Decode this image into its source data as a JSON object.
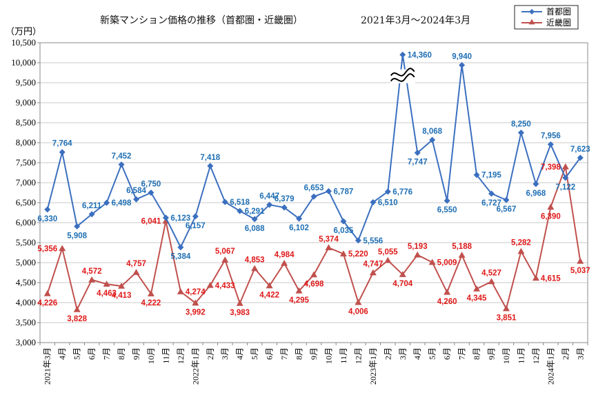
{
  "chart_data": {
    "type": "line",
    "title": "新築マンション価格の推移（首都圏・近畿圏）",
    "subtitle": "2021年3月～2024年3月",
    "ylabel": "（万円）",
    "ylim": [
      3000,
      10500
    ],
    "ytick_step": 500,
    "ytick_labels": [
      "3,000",
      "3,500",
      "4,000",
      "4,500",
      "5,000",
      "5,500",
      "6,000",
      "6,500",
      "7,000",
      "7,500",
      "8,000",
      "8,500",
      "9,000",
      "9,500",
      "10,000",
      "10,500"
    ],
    "categories": [
      "2021年3月",
      "4月",
      "5月",
      "6月",
      "7月",
      "8月",
      "9月",
      "10月",
      "11月",
      "12月",
      "2022年1月",
      "2月",
      "3月",
      "4月",
      "5月",
      "6月",
      "7月",
      "8月",
      "9月",
      "10月",
      "11月",
      "12月",
      "2023年1月",
      "2月",
      "3月",
      "4月",
      "5月",
      "6月",
      "7月",
      "8月",
      "9月",
      "10月",
      "11月",
      "12月",
      "2024年1月",
      "2月",
      "3月"
    ],
    "axis_break": {
      "category": "3月",
      "index": 24,
      "note": "≈"
    },
    "series": [
      {
        "name": "首都圏",
        "color": "#3b6fbf",
        "marker": "diamond",
        "values": [
          6330,
          7764,
          5908,
          6211,
          6498,
          7452,
          6584,
          6750,
          6123,
          5384,
          6157,
          7418,
          6518,
          6291,
          6088,
          6447,
          6379,
          6102,
          6653,
          6787,
          6035,
          5556,
          6510,
          6776,
          14360,
          7747,
          8068,
          6550,
          9940,
          7195,
          6727,
          6567,
          8250,
          6968,
          7956,
          7122,
          7623
        ],
        "plot_values": [
          6330,
          7764,
          5908,
          6211,
          6498,
          7452,
          6584,
          6750,
          6123,
          5384,
          6157,
          7418,
          6518,
          6291,
          6088,
          6447,
          6379,
          6102,
          6653,
          6787,
          6035,
          5556,
          6510,
          6776,
          10200,
          7747,
          8068,
          6550,
          9940,
          7195,
          6727,
          6567,
          8250,
          6968,
          7956,
          7122,
          7623
        ],
        "labels": [
          "6,330",
          "7,764",
          "5,908",
          "6,211",
          "6,498",
          "7,452",
          "6,584",
          "6,750",
          "6,123",
          "5,384",
          "6,157",
          "7,418",
          "6,518",
          "6,291",
          "6,088",
          "6,447",
          "6,379",
          "6,102",
          "6,653",
          "6,787",
          "6,035",
          "5,556",
          "6,510",
          "6,776",
          "14,360",
          "7,747",
          "8,068",
          "6,550",
          "9,940",
          "7,195",
          "6,727",
          "6,567",
          "8,250",
          "6,968",
          "7,956",
          "7,122",
          "7,623"
        ],
        "label_pos": [
          "below",
          "above",
          "below",
          "above",
          "right",
          "above",
          "above",
          "above",
          "right",
          "below",
          "below",
          "above",
          "right",
          "right",
          "below",
          "above",
          "above",
          "below",
          "above",
          "right",
          "below",
          "right",
          "right",
          "right",
          "right",
          "below",
          "above",
          "below",
          "above",
          "right",
          "below",
          "below",
          "above",
          "below",
          "above",
          "below",
          "above"
        ]
      },
      {
        "name": "近畿圏",
        "color": "#c0504d",
        "marker": "triangle",
        "values": [
          4226,
          5356,
          3828,
          4572,
          4463,
          4413,
          4757,
          4222,
          6041,
          4274,
          3992,
          4433,
          5067,
          3983,
          4853,
          4422,
          4984,
          4295,
          4698,
          5374,
          5220,
          4006,
          4747,
          5055,
          4704,
          5193,
          5009,
          4260,
          5188,
          4345,
          4527,
          3851,
          5282,
          4615,
          6390,
          7398,
          5037
        ],
        "labels": [
          "4,226",
          "5,356",
          "3,828",
          "4,572",
          "4,463",
          "4,413",
          "4,757",
          "4,222",
          "6,041",
          "4,274",
          "3,992",
          "4,433",
          "5,067",
          "3,983",
          "4,853",
          "4,422",
          "4,984",
          "4,295",
          "4,698",
          "5,374",
          "5,220",
          "4,006",
          "4,747",
          "5,055",
          "4,704",
          "5,193",
          "5,009",
          "4,260",
          "5,188",
          "4,345",
          "4,527",
          "3,851",
          "5,282",
          "4,615",
          "6,390",
          "7,398",
          "5,037"
        ],
        "label_pos": [
          "below",
          "left",
          "below",
          "above",
          "below",
          "below",
          "above",
          "below",
          "left",
          "right",
          "below",
          "right",
          "above",
          "below",
          "above",
          "below",
          "above",
          "below",
          "below",
          "above",
          "right",
          "below",
          "above",
          "above",
          "below",
          "above",
          "right",
          "below",
          "above",
          "below",
          "above",
          "below",
          "above",
          "right",
          "below",
          "left",
          "below"
        ]
      }
    ],
    "legend": [
      "首都圏",
      "近畿圏"
    ],
    "legend_position": "top-right",
    "grid": true
  }
}
